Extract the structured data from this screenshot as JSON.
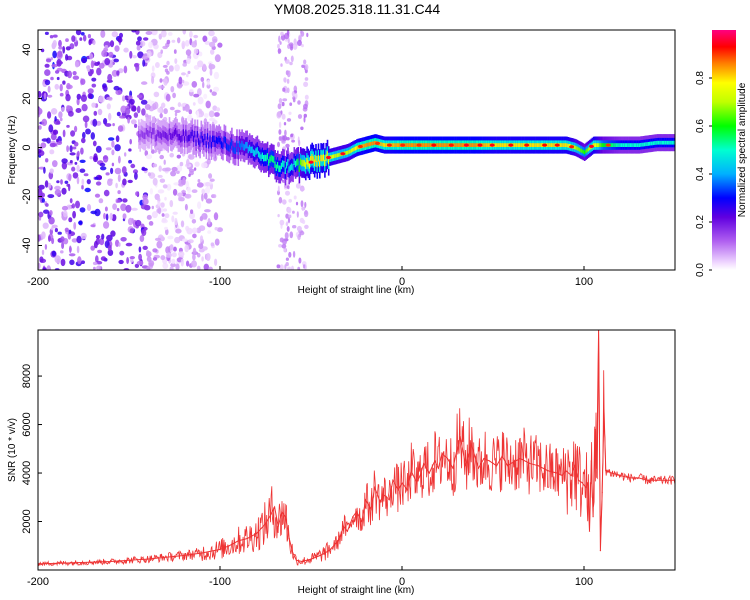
{
  "title": "YM08.2025.318.11.31.C44",
  "colors": {
    "snr_line": "#ee3333",
    "frame": "#000000",
    "background": "#ffffff"
  },
  "chart_data": [
    {
      "type": "heatmap",
      "name": "spectrogram",
      "xlabel": "Height of straight line (km)",
      "ylabel": "Frequency (Hz)",
      "xlim": [
        -200,
        150
      ],
      "ylim": [
        -50,
        48
      ],
      "x_ticks": [
        -200,
        -100,
        0,
        100
      ],
      "x_tick_labels": [
        "-200",
        "-100",
        "0",
        "100"
      ],
      "y_ticks": [
        -40,
        -20,
        0,
        20,
        40
      ],
      "y_tick_labels": [
        "-40",
        "-20",
        "0",
        "20",
        "40"
      ],
      "colorbar": {
        "label": "Normalized spectral amplitude",
        "range": [
          0,
          1
        ],
        "ticks": [
          0,
          0.2,
          0.4,
          0.6,
          0.8
        ],
        "tick_labels": [
          "0.0",
          "0.2",
          "0.4",
          "0.6",
          "0.8"
        ],
        "colormap": "rainbow"
      },
      "ridge": {
        "x": [
          -145,
          -130,
          -115,
          -100,
          -90,
          -80,
          -72,
          -66,
          -60,
          -55,
          -50,
          -45,
          -40,
          -35,
          -30,
          -25,
          -20,
          -15,
          -10,
          0,
          10,
          20,
          30,
          40,
          50,
          60,
          70,
          80,
          90,
          95,
          100,
          105,
          110,
          120,
          130,
          140,
          150
        ],
        "freq": [
          6,
          5,
          4,
          2,
          0,
          -2,
          -6,
          -8,
          -7,
          -7,
          -6,
          -5,
          -4,
          -3,
          -2,
          0,
          1,
          2,
          1,
          1,
          1,
          1,
          1,
          1,
          1,
          1,
          1,
          1,
          1,
          0,
          -2,
          1,
          1,
          1,
          1,
          2,
          2
        ],
        "amplitude": [
          0.15,
          0.2,
          0.25,
          0.3,
          0.35,
          0.45,
          0.55,
          0.5,
          0.45,
          0.7,
          0.8,
          0.8,
          0.75,
          0.7,
          0.7,
          0.8,
          0.85,
          0.85,
          0.8,
          0.85,
          0.85,
          0.85,
          0.85,
          0.85,
          0.8,
          0.8,
          0.8,
          0.8,
          0.8,
          0.7,
          0.6,
          0.8,
          0.6,
          0.5,
          0.5,
          0.5,
          0.5
        ]
      },
      "noise_band_x": [
        -200,
        -140
      ],
      "noise_strip_x": [
        -68,
        -52
      ]
    },
    {
      "type": "line",
      "name": "snr",
      "xlabel": "Height of straight line (km)",
      "ylabel": "SNR (10 * v/v)",
      "xlim": [
        -200,
        150
      ],
      "ylim": [
        0,
        9900
      ],
      "x_ticks": [
        -200,
        -100,
        0,
        100
      ],
      "x_tick_labels": [
        "-200",
        "-100",
        "0",
        "100"
      ],
      "y_ticks": [
        2000,
        4000,
        6000,
        8000
      ],
      "y_tick_labels": [
        "2000",
        "4000",
        "6000",
        "8000"
      ],
      "series": [
        {
          "name": "SNR",
          "x": [
            -200,
            -180,
            -160,
            -140,
            -120,
            -110,
            -100,
            -95,
            -90,
            -85,
            -80,
            -75,
            -72,
            -70,
            -68,
            -66,
            -64,
            -62,
            -60,
            -58,
            -55,
            -50,
            -45,
            -40,
            -35,
            -32,
            -30,
            -27,
            -25,
            -22,
            -20,
            -17,
            -15,
            -12,
            -10,
            -7,
            -5,
            -2,
            0,
            3,
            5,
            8,
            10,
            12,
            15,
            18,
            20,
            22,
            25,
            28,
            30,
            32,
            35,
            38,
            40,
            42,
            45,
            48,
            50,
            52,
            55,
            58,
            60,
            65,
            70,
            75,
            80,
            85,
            88,
            90,
            93,
            95,
            97,
            99,
            101,
            102,
            103,
            104,
            105,
            106,
            107,
            108,
            109,
            110,
            111,
            112,
            115,
            120,
            125,
            130,
            135,
            140,
            145,
            150
          ],
          "y": [
            250,
            300,
            350,
            450,
            600,
            700,
            850,
            1000,
            1200,
            1300,
            1500,
            1900,
            2300,
            2600,
            1800,
            2400,
            2200,
            1300,
            700,
            400,
            350,
            450,
            600,
            800,
            1200,
            1800,
            1600,
            2200,
            2400,
            2000,
            2900,
            2500,
            3400,
            2800,
            3100,
            2900,
            3700,
            3300,
            3600,
            3300,
            4100,
            3600,
            3900,
            4400,
            4000,
            4500,
            4200,
            4800,
            4600,
            4200,
            4900,
            5500,
            4300,
            5200,
            4700,
            4200,
            4600,
            4500,
            4400,
            4300,
            4700,
            4300,
            4400,
            4600,
            4400,
            4300,
            4100,
            4000,
            3900,
            4100,
            3900,
            4300,
            3700,
            3600,
            3400,
            3600,
            1600,
            4500,
            2200,
            5800,
            4200,
            9900,
            800,
            3200,
            6600,
            4100,
            4000,
            3900,
            3800,
            3800,
            3700,
            3700,
            3700,
            3700
          ]
        }
      ]
    }
  ]
}
